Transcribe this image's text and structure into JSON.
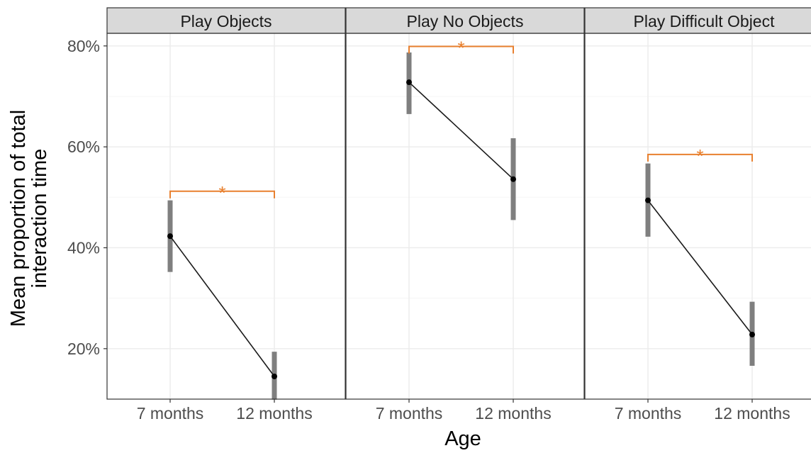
{
  "chart_data": {
    "type": "line",
    "facets": [
      "Play Objects",
      "Play No Objects",
      "Play Difficult Object"
    ],
    "categories": [
      "7 months",
      "12 months"
    ],
    "xlabel": "Age",
    "ylabel_lines": [
      "Mean proportion of total",
      "interaction time"
    ],
    "y_ticks": [
      0.2,
      0.4,
      0.6,
      0.8
    ],
    "y_tick_labels": [
      "20%",
      "40%",
      "60%",
      "80%"
    ],
    "ylim": [
      0.1,
      0.825
    ],
    "grid": true,
    "significance_marker": "*",
    "colors": {
      "line": "#1a1a1a",
      "point": "#000000",
      "errorbar": "#7f7f7f",
      "bracket": "#e8802f",
      "strip_fill": "#d9d9d9",
      "strip_border": "#333333",
      "panel_border": "#333333",
      "grid_major": "#ebebeb",
      "grid_minor": "#f5f5f5"
    },
    "panels": [
      {
        "facet": "Play Objects",
        "values": [
          0.423,
          0.145
        ],
        "ci_low": [
          0.352,
          0.099
        ],
        "ci_high": [
          0.494,
          0.194
        ],
        "bracket_y": 0.512,
        "significant": true
      },
      {
        "facet": "Play No Objects",
        "values": [
          0.728,
          0.536
        ],
        "ci_low": [
          0.665,
          0.455
        ],
        "ci_high": [
          0.787,
          0.617
        ],
        "bracket_y": 0.799,
        "significant": true
      },
      {
        "facet": "Play Difficult Object",
        "values": [
          0.494,
          0.228
        ],
        "ci_low": [
          0.422,
          0.166
        ],
        "ci_high": [
          0.567,
          0.293
        ],
        "bracket_y": 0.585,
        "significant": true
      }
    ]
  }
}
